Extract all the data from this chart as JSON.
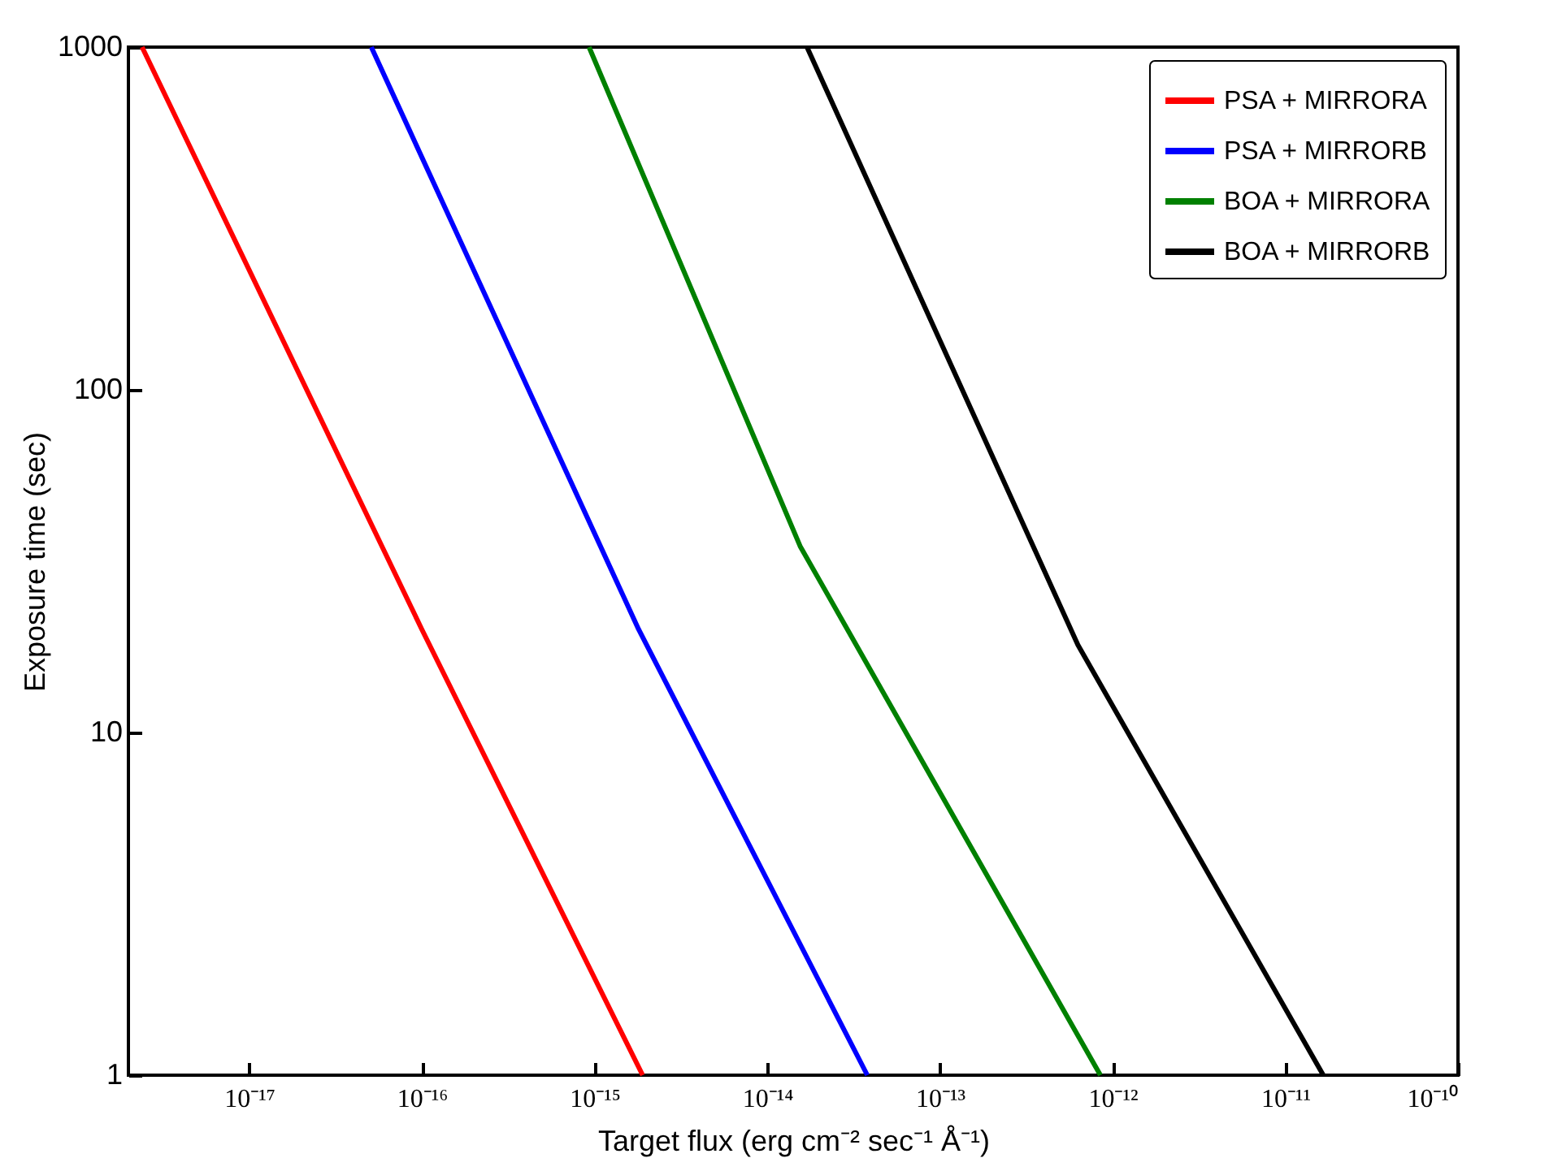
{
  "chart_data": {
    "type": "line",
    "xlabel": "Target flux (erg cm⁻² sec⁻¹ Å⁻¹)",
    "ylabel": "Exposure time (sec)",
    "log": "xy",
    "grid": false,
    "legend": "top right",
    "line_style": "solid",
    "marker": "none",
    "xlim": [
      2e-18,
      1e-10
    ],
    "xticks": [
      {
        "value": 1e-17,
        "label": "10⁻¹⁷"
      },
      {
        "value": 1e-16,
        "label": "10⁻¹⁶"
      },
      {
        "value": 1e-15,
        "label": "10⁻¹⁵"
      },
      {
        "value": 1e-14,
        "label": "10⁻¹⁴"
      },
      {
        "value": 1e-13,
        "label": "10⁻¹³"
      },
      {
        "value": 1e-12,
        "label": "10⁻¹²"
      },
      {
        "value": 1e-11,
        "label": "10⁻¹¹"
      },
      {
        "value": 1e-10,
        "label": "10⁻¹⁰"
      }
    ],
    "ylim": [
      1,
      1000
    ],
    "yticks": [
      1,
      10,
      100,
      1000
    ],
    "series": [
      {
        "name": "PSA + MIRRORA",
        "color": "#ff0000",
        "x": [
          2.4e-18,
          1e-16,
          1.9e-15
        ],
        "values": [
          1000,
          20,
          1
        ]
      },
      {
        "name": "PSA + MIRRORB",
        "color": "#0000ff",
        "x": [
          5.1e-17,
          1.8e-15,
          3.8e-14
        ],
        "values": [
          1000,
          20,
          1
        ]
      },
      {
        "name": "BOA + MIRRORA",
        "color": "#008000",
        "x": [
          9.3e-16,
          1.55e-14,
          8.5e-13
        ],
        "values": [
          1000,
          35,
          1
        ]
      },
      {
        "name": "BOA + MIRRORB",
        "color": "#000000",
        "x": [
          1.7e-14,
          6.3e-13,
          1.66e-11
        ],
        "values": [
          1000,
          18,
          1
        ]
      }
    ]
  }
}
